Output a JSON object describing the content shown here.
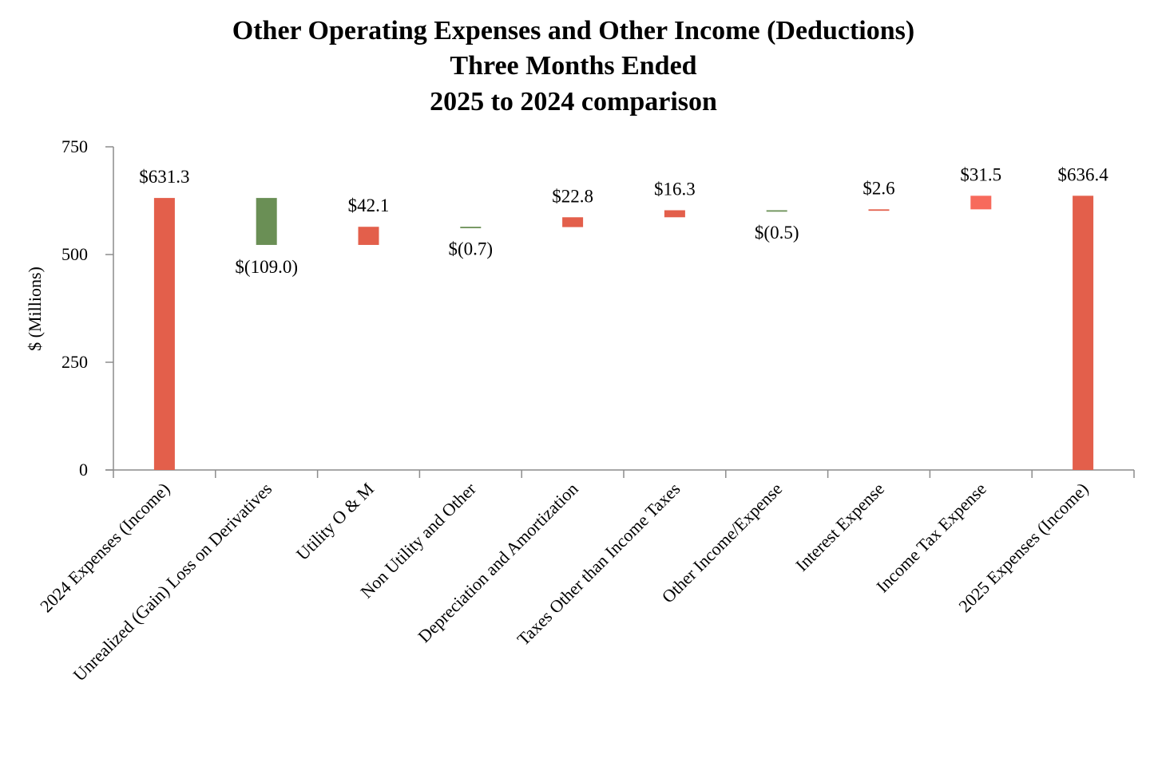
{
  "chart_data": {
    "type": "bar",
    "subtype": "waterfall",
    "title": [
      "Other Operating Expenses and Other Income (Deductions)",
      "Three Months Ended",
      "2025 to 2024 comparison"
    ],
    "xlabel": "",
    "ylabel": "$ (Millions)",
    "ylim": [
      0,
      750
    ],
    "yticks": [
      "0",
      "250",
      "500",
      "750"
    ],
    "ytick_values": [
      0,
      250,
      500,
      750
    ],
    "grid": false,
    "legend": "none",
    "colors": {
      "increase": "#e35f4b",
      "decrease": "#6a8f55",
      "total": "#e35f4b",
      "income_tax": "#f76a5c",
      "axis": "#8c8c8c"
    },
    "categories": [
      "2024 Expenses (Income)",
      "Unrealized (Gain) Loss on Derivatives",
      "Utility O & M",
      "Non Utility and Other",
      "Depreciation and Amortization",
      "Taxes Other than Income Taxes",
      "Other Income/Expense",
      "Interest Expense",
      "Income Tax Expense",
      "2025 Expenses (Income)"
    ],
    "values": [
      631.3,
      -109.0,
      42.1,
      -0.7,
      22.8,
      16.3,
      -0.5,
      2.6,
      31.5,
      636.4
    ],
    "kinds": [
      "total",
      "delta",
      "delta",
      "delta",
      "delta",
      "delta",
      "delta",
      "delta",
      "delta",
      "total"
    ],
    "labels": [
      "$631.3",
      "$(109.0)",
      "$42.1",
      "$(0.7)",
      "$22.8",
      "$16.3",
      "$(0.5)",
      "$2.6",
      "$31.5",
      "$636.4"
    ]
  }
}
